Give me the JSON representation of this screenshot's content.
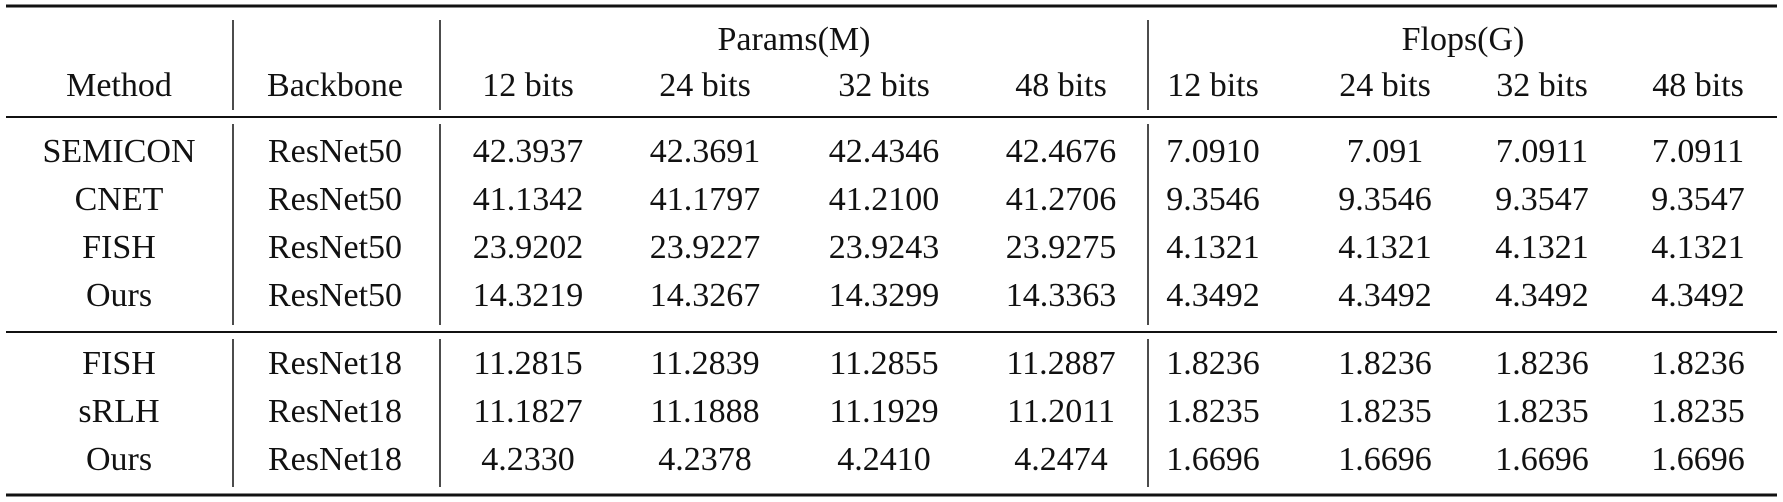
{
  "header": {
    "method": "Method",
    "backbone": "Backbone",
    "groups": [
      {
        "label": "Params(M)",
        "columns": [
          "12 bits",
          "24 bits",
          "32 bits",
          "48 bits"
        ]
      },
      {
        "label": "Flops(G)",
        "columns": [
          "12 bits",
          "24 bits",
          "32 bits",
          "48 bits"
        ]
      }
    ]
  },
  "table": {
    "sections": [
      {
        "rows": [
          [
            "SEMICON",
            "ResNet50",
            "42.3937",
            "42.3691",
            "42.4346",
            "42.4676",
            "7.0910",
            "7.091",
            "7.0911",
            "7.0911"
          ],
          [
            "CNET",
            "ResNet50",
            "41.1342",
            "41.1797",
            "41.2100",
            "41.2706",
            "9.3546",
            "9.3546",
            "9.3547",
            "9.3547"
          ],
          [
            "FISH",
            "ResNet50",
            "23.9202",
            "23.9227",
            "23.9243",
            "23.9275",
            "4.1321",
            "4.1321",
            "4.1321",
            "4.1321"
          ],
          [
            "Ours",
            "ResNet50",
            "14.3219",
            "14.3267",
            "14.3299",
            "14.3363",
            "4.3492",
            "4.3492",
            "4.3492",
            "4.3492"
          ]
        ]
      },
      {
        "rows": [
          [
            "FISH",
            "ResNet18",
            "11.2815",
            "11.2839",
            "11.2855",
            "11.2887",
            "1.8236",
            "1.8236",
            "1.8236",
            "1.8236"
          ],
          [
            "sRLH",
            "ResNet18",
            "11.1827",
            "11.1888",
            "11.1929",
            "11.2011",
            "1.8235",
            "1.8235",
            "1.8235",
            "1.8235"
          ],
          [
            "Ours",
            "ResNet18",
            "4.2330",
            "4.2378",
            "4.2410",
            "4.2474",
            "1.6696",
            "1.6696",
            "1.6696",
            "1.6696"
          ]
        ]
      }
    ]
  }
}
